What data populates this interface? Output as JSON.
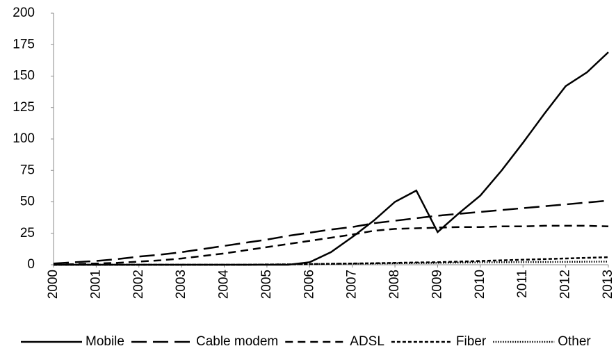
{
  "chart_data": {
    "type": "line",
    "x": [
      2000,
      2000.5,
      2001,
      2001.5,
      2002,
      2002.5,
      2003,
      2003.5,
      2004,
      2004.5,
      2005,
      2005.5,
      2006,
      2006.5,
      2007,
      2007.5,
      2008,
      2008.5,
      2009,
      2009.5,
      2010,
      2010.5,
      2011,
      2011.5,
      2012,
      2012.5,
      2013
    ],
    "series": [
      {
        "name": "Mobile",
        "color": "#000000",
        "dash": "solid",
        "values": [
          0,
          0,
          0,
          0,
          0,
          0,
          0,
          0,
          0,
          0,
          0,
          0,
          2,
          10,
          22,
          35,
          50,
          59,
          26,
          41,
          55,
          75,
          97,
          120,
          142,
          153,
          169
        ]
      },
      {
        "name": "Cable modem",
        "color": "#000000",
        "dash": "long-dash",
        "values": [
          1,
          2,
          3,
          4.5,
          6.5,
          8,
          10,
          12.5,
          15,
          17.5,
          20,
          23,
          25.5,
          28,
          30,
          33,
          35,
          37,
          39,
          40.5,
          42,
          43.5,
          45,
          46.5,
          48,
          49.5,
          51
        ]
      },
      {
        "name": "ADSL",
        "color": "#000000",
        "dash": "dash",
        "values": [
          0,
          0.5,
          1,
          1.5,
          2.5,
          3.5,
          5,
          7,
          9,
          11.5,
          14,
          16.5,
          19,
          21.5,
          24,
          27,
          28.5,
          29,
          29.5,
          30,
          30,
          30.5,
          30.5,
          31,
          31,
          31,
          30.5
        ]
      },
      {
        "name": "Fiber",
        "color": "#000000",
        "dash": "short-dash",
        "values": [
          0,
          0,
          0,
          0,
          0,
          0,
          0,
          0,
          0,
          0,
          0.2,
          0.3,
          0.5,
          0.8,
          1,
          1.2,
          1.5,
          1.8,
          2,
          2.5,
          3,
          3.5,
          4,
          4.5,
          5,
          5.5,
          6
        ]
      },
      {
        "name": "Other",
        "color": "#000000",
        "dash": "dot",
        "values": [
          0,
          0,
          0,
          0,
          0,
          0,
          0,
          0,
          0,
          0,
          0.2,
          0.3,
          0.5,
          0.7,
          0.9,
          1,
          1.2,
          1.3,
          1.5,
          1.7,
          1.9,
          2,
          2.1,
          2.2,
          2.3,
          2.4,
          2.5
        ]
      }
    ],
    "xlim": [
      2000,
      2013
    ],
    "xticks": [
      2000,
      2001,
      2002,
      2003,
      2004,
      2005,
      2006,
      2007,
      2008,
      2009,
      2010,
      2011,
      2012,
      2013
    ],
    "ylim": [
      0,
      200
    ],
    "yticks": [
      0,
      25,
      50,
      75,
      100,
      125,
      150,
      175,
      200
    ],
    "grid": false,
    "legend": "bottom"
  }
}
